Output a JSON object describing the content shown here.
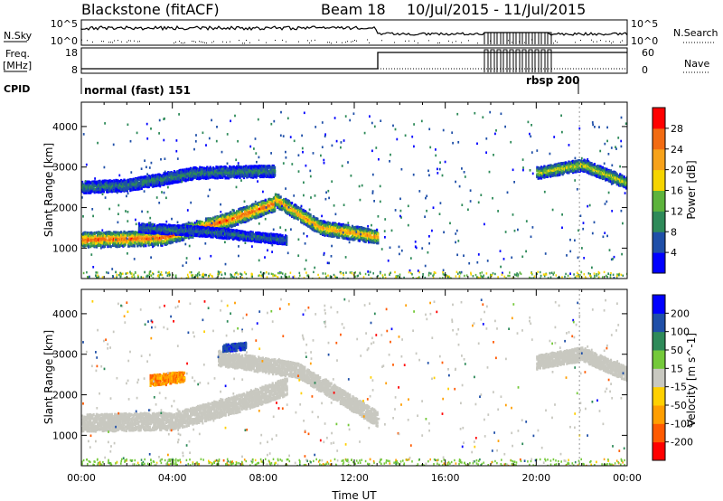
{
  "header": {
    "station": "Blackstone (fitACF)",
    "beam": "Beam 18",
    "date_range": "10/Jul/2015 - 11/Jul/2015"
  },
  "status_panels": {
    "nsky_label": "N.Sky",
    "nsearch_label": "N.Search",
    "freq_label_1": "Freq.",
    "freq_label_2": "[MHz]",
    "nave_label": "Nave",
    "cpid_label": "CPID",
    "nsky_ticks": [
      "10^5",
      "10^0"
    ],
    "nsearch_ticks": [
      "10^5",
      "10^0"
    ],
    "freq_ticks": [
      "18",
      "8"
    ],
    "nave_ticks": [
      "60",
      "0"
    ],
    "cpid_modes": [
      "normal (fast) 151",
      "rbsp 200"
    ]
  },
  "colors": {
    "power": [
      "#0000ff",
      "#1f4fa8",
      "#2e8a59",
      "#5db33c",
      "#f5d400",
      "#f7a21a",
      "#f26b12",
      "#ff0000"
    ],
    "velocity": [
      "#ff0000",
      "#ff5a00",
      "#ff9e00",
      "#ffd000",
      "#c8c8c0",
      "#74c93a",
      "#2e8a59",
      "#1f4fa8",
      "#0000ff"
    ]
  },
  "chart_data": [
    {
      "type": "heatmap",
      "xlabel": "",
      "ylabel": "Slant Range [km]",
      "yticks": [
        "1000",
        "2000",
        "3000",
        "4000"
      ],
      "ylim": [
        250,
        4600
      ],
      "xlim": [
        0,
        24
      ],
      "colorbar": {
        "label": "Power [dB]",
        "ticks": [
          "4",
          "8",
          "12",
          "16",
          "20",
          "24",
          "28"
        ],
        "range": [
          0,
          32
        ]
      },
      "bands": [
        {
          "x": [
            0.0,
            3.5,
            6.5,
            8.5
          ],
          "y": [
            1200,
            1250,
            1700,
            2100
          ],
          "thickness": 260,
          "value": 28
        },
        {
          "x": [
            8.5,
            10.5,
            13.0
          ],
          "y": [
            2200,
            1500,
            1280
          ],
          "thickness": 240,
          "value": 24
        },
        {
          "x": [
            0.0,
            2.0,
            5.0,
            8.5
          ],
          "y": [
            2500,
            2550,
            2850,
            2900
          ],
          "thickness": 200,
          "value": 10
        },
        {
          "x": [
            2.5,
            5.5,
            9.0
          ],
          "y": [
            1500,
            1400,
            1200
          ],
          "thickness": 160,
          "value": 9
        },
        {
          "x": [
            20.0,
            22.0,
            24.0
          ],
          "y": [
            2850,
            3050,
            2600
          ],
          "thickness": 200,
          "value": 18
        }
      ]
    },
    {
      "type": "heatmap",
      "xlabel": "Time UT",
      "ylabel": "Slant Range [km]",
      "xticks": [
        "00:00",
        "04:00",
        "08:00",
        "12:00",
        "16:00",
        "20:00",
        "00:00"
      ],
      "yticks": [
        "1000",
        "2000",
        "3000",
        "4000"
      ],
      "ylim": [
        250,
        4600
      ],
      "xlim": [
        0,
        24
      ],
      "colorbar": {
        "label": "Velocity [m s^-1]",
        "ticks": [
          "-200",
          "-100",
          "-50",
          "-15",
          "15",
          "50",
          "100",
          "200"
        ],
        "range": [
          -250,
          250
        ]
      },
      "bands": [
        {
          "x": [
            0.0,
            4.0,
            7.0,
            9.0
          ],
          "y": [
            1300,
            1350,
            1800,
            2200
          ],
          "thickness": 300,
          "value": 0
        },
        {
          "x": [
            6.0,
            9.5,
            13.0
          ],
          "y": [
            2900,
            2600,
            1400
          ],
          "thickness": 260,
          "value": 0
        },
        {
          "x": [
            3.0,
            4.5
          ],
          "y": [
            2350,
            2450
          ],
          "thickness": 180,
          "value": -80
        },
        {
          "x": [
            6.2,
            7.2
          ],
          "y": [
            3150,
            3200
          ],
          "thickness": 120,
          "value": 180
        },
        {
          "x": [
            20.0,
            22.0,
            24.0
          ],
          "y": [
            2800,
            3000,
            2500
          ],
          "thickness": 240,
          "value": 0
        }
      ]
    }
  ]
}
